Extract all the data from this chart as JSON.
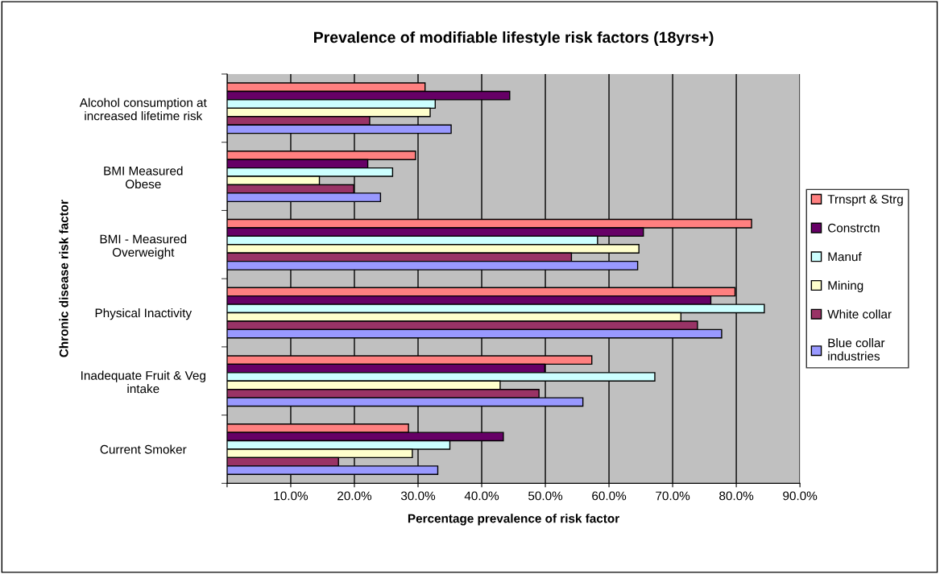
{
  "chart_data": {
    "type": "bar",
    "orientation": "horizontal",
    "title": "Prevalence of modifiable lifestyle risk factors (18yrs+)",
    "xlabel": "Percentage prevalence of risk factor",
    "ylabel": "Chronic disease risk factor",
    "categories": [
      "Alcohol consumption at\nincreased lifetime risk",
      "BMI Measured\nObese",
      "BMI - Measured\nOverweight",
      "Physical Inactivity",
      "Inadequate Fruit & Veg\nintake",
      "Current Smoker"
    ],
    "series": [
      {
        "name": "Trnsprt & Strg",
        "color": "#ff8080",
        "values": [
          31.1,
          29.6,
          82.4,
          79.8,
          57.3,
          28.5
        ]
      },
      {
        "name": "Constrctn",
        "color": "#660066",
        "values": [
          44.4,
          22.1,
          65.4,
          76.0,
          49.9,
          43.4
        ]
      },
      {
        "name": "Manuf",
        "color": "#ccffff",
        "values": [
          32.7,
          26.0,
          58.2,
          84.4,
          67.2,
          35.0
        ]
      },
      {
        "name": "Mining",
        "color": "#ffffcc",
        "values": [
          31.9,
          14.5,
          64.7,
          71.3,
          42.9,
          29.1
        ]
      },
      {
        "name": "White collar",
        "color": "#993366",
        "values": [
          22.4,
          19.9,
          54.1,
          73.9,
          49.0,
          17.5
        ]
      },
      {
        "name": "Blue collar\nindustries",
        "color": "#9999ff",
        "values": [
          35.2,
          24.1,
          64.5,
          77.7,
          55.9,
          33.1
        ]
      }
    ],
    "xlim": [
      0,
      90
    ],
    "xticks": [
      {
        "value": 0,
        "label": null
      },
      {
        "value": 10,
        "label": "10.0%"
      },
      {
        "value": 20,
        "label": "20.0%"
      },
      {
        "value": 30,
        "label": "30.0%"
      },
      {
        "value": 40,
        "label": "40.0%"
      },
      {
        "value": 50,
        "label": "50.0%"
      },
      {
        "value": 60,
        "label": "60.0%"
      },
      {
        "value": 70,
        "label": "70.0%"
      },
      {
        "value": 80,
        "label": "80.0%"
      },
      {
        "value": 90,
        "label": "90.0%"
      }
    ],
    "grid": "x",
    "legend": "right"
  }
}
